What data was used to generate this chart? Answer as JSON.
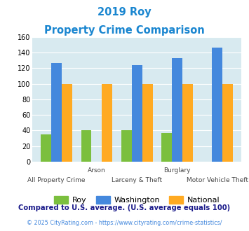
{
  "title_line1": "2019 Roy",
  "title_line2": "Property Crime Comparison",
  "categories": [
    "All Property Crime",
    "Arson",
    "Larceny & Theft",
    "Burglary",
    "Motor Vehicle Theft"
  ],
  "category_labels_row1": [
    "",
    "Arson",
    "",
    "Burglary",
    ""
  ],
  "category_labels_row2": [
    "All Property Crime",
    "",
    "Larceny & Theft",
    "",
    "Motor Vehicle Theft"
  ],
  "roy": [
    35,
    40,
    40,
    37,
    0
  ],
  "washington": [
    127,
    0,
    124,
    133,
    146
  ],
  "national": [
    100,
    100,
    100,
    100,
    100
  ],
  "roy_color": "#7bbf3e",
  "washington_color": "#4488dd",
  "national_color": "#ffaa22",
  "bg_color": "#d8eaf0",
  "title_color": "#1a86d0",
  "ylim": [
    0,
    160
  ],
  "yticks": [
    0,
    20,
    40,
    60,
    80,
    100,
    120,
    140,
    160
  ],
  "footnote1": "Compared to U.S. average. (U.S. average equals 100)",
  "footnote2": "© 2025 CityRating.com - https://www.cityrating.com/crime-statistics/",
  "footnote1_color": "#1a1a8a",
  "footnote2_color": "#4488dd"
}
